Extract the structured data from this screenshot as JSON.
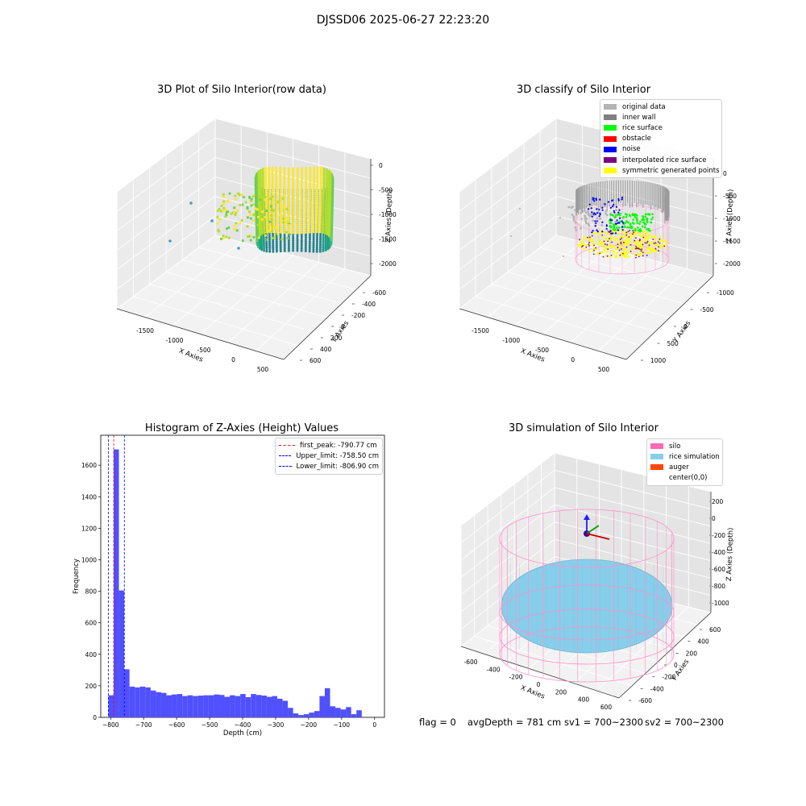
{
  "figure": {
    "suptitle": "DJSSD06 2025-06-27 22:23:20",
    "footer": {
      "flag": "flag = 0",
      "avg_depth": "avgDepth = 781 cm",
      "sv1": "sv1 = 700~2300",
      "sv2": "sv2 = 700~2300"
    }
  },
  "panels": {
    "raw": {
      "title": "3D Plot of Silo Interior(row data)",
      "xlabel": "X Axies",
      "ylabel": "Y Axies",
      "zlabel": "Z Axies (Depth)",
      "x_ticks": [
        "-1500",
        "-1000",
        "-500",
        "0",
        "500"
      ],
      "y_ticks": [
        "-600",
        "-400",
        "-200",
        "0",
        "200",
        "400",
        "600"
      ],
      "z_ticks": [
        "0",
        "-500",
        "-1000",
        "-1500",
        "-2000"
      ],
      "colormap": [
        "#fde725",
        "#b5de2b",
        "#6ece58",
        "#35b779",
        "#1f9e89",
        "#26828e"
      ]
    },
    "classify": {
      "title": "3D classify of Silo Interior",
      "xlabel": "X Axies",
      "ylabel": "Y Axies",
      "zlabel": "Z Axies (Depth)",
      "x_ticks": [
        "-1500",
        "-1000",
        "-500",
        "0",
        "500"
      ],
      "y_ticks": [
        "-1000",
        "-500",
        "0",
        "500",
        "1000"
      ],
      "z_ticks": [
        "0",
        "-500",
        "-1000",
        "-1500",
        "-2000"
      ],
      "legend": [
        {
          "label": "original data",
          "color": "#b4b4b4"
        },
        {
          "label": "inner wall",
          "color": "#808080"
        },
        {
          "label": "rice surface",
          "color": "#00ff00"
        },
        {
          "label": "obstacle",
          "color": "#ff0000"
        },
        {
          "label": "noise",
          "color": "#0000ff"
        },
        {
          "label": "interpolated rice surface",
          "color": "#800080"
        },
        {
          "label": "symmetric generated points",
          "color": "#ffff00"
        }
      ]
    },
    "simulation": {
      "title": "3D simulation of Silo Interior",
      "xlabel": "X Axies",
      "ylabel": "Y Axies",
      "zlabel": "Z Axies (Depth)",
      "x_ticks": [
        "-600",
        "-400",
        "-200",
        "0",
        "200",
        "400",
        "600"
      ],
      "y_ticks": [
        "-600",
        "-400",
        "-200",
        "0",
        "200",
        "400",
        "600"
      ],
      "z_ticks": [
        "200",
        "0",
        "-200",
        "-400",
        "-600",
        "-800",
        "-1000"
      ],
      "legend": [
        {
          "label": "silo",
          "color": "#ff69b4"
        },
        {
          "label": "rice simulation",
          "color": "#87ceeb"
        },
        {
          "label": "auger",
          "color": "#ff4500"
        },
        {
          "label": "center(0,0)",
          "color": ""
        }
      ]
    }
  },
  "chart_data": [
    {
      "type": "scatter",
      "title": "3D Plot of Silo Interior(row data)",
      "xlabel": "X Axies",
      "ylabel": "Y Axies",
      "zlabel": "Z Axies (Depth)",
      "xlim": [
        -1800,
        600
      ],
      "ylim": [
        -650,
        650
      ],
      "zlim": [
        -2200,
        100
      ]
    },
    {
      "type": "scatter",
      "title": "3D classify of Silo Interior",
      "xlabel": "X Axies",
      "ylabel": "Y Axies",
      "zlabel": "Z Axies (Depth)",
      "xlim": [
        -1800,
        600
      ],
      "ylim": [
        -1150,
        1150
      ],
      "zlim": [
        -2200,
        100
      ]
    },
    {
      "type": "bar",
      "title": "Histogram of Z-Axies (Height) Values",
      "xlabel": "Depth (cm)",
      "ylabel": "Frequency",
      "xlim": [
        -830,
        30
      ],
      "ylim": [
        0,
        1790
      ],
      "x_ticks": [
        -800,
        -700,
        -600,
        -500,
        -400,
        -300,
        -200,
        -100,
        0
      ],
      "y_ticks": [
        0,
        200,
        400,
        600,
        800,
        1000,
        1200,
        1400,
        1600
      ],
      "bin_start": -806.9,
      "bin_width": 16,
      "values": [
        140,
        1700,
        805,
        305,
        195,
        190,
        195,
        190,
        170,
        160,
        155,
        140,
        145,
        148,
        135,
        140,
        135,
        138,
        140,
        140,
        145,
        142,
        130,
        140,
        135,
        148,
        128,
        148,
        142,
        138,
        130,
        135,
        118,
        105,
        60,
        25,
        15,
        20,
        30,
        40,
        135,
        185,
        70,
        60,
        50,
        65,
        20,
        45
      ],
      "lines": [
        {
          "label": "first_peak: -790.77 cm",
          "x": -790.77,
          "color": "#ff0000"
        },
        {
          "label": "Upper_limit: -758.50 cm",
          "x": -758.5,
          "color": "#0000ff"
        },
        {
          "label": "Lower_limit: -806.90 cm",
          "x": -806.9,
          "color": "#0000ff"
        }
      ],
      "bar_color": "#5050ff"
    },
    {
      "type": "scatter",
      "title": "3D simulation of Silo Interior",
      "xlabel": "X Axies",
      "ylabel": "Y Axies",
      "zlabel": "Z Axies (Depth)",
      "xlim": [
        -700,
        700
      ],
      "ylim": [
        -700,
        700
      ],
      "zlim": [
        -1100,
        250
      ]
    }
  ]
}
